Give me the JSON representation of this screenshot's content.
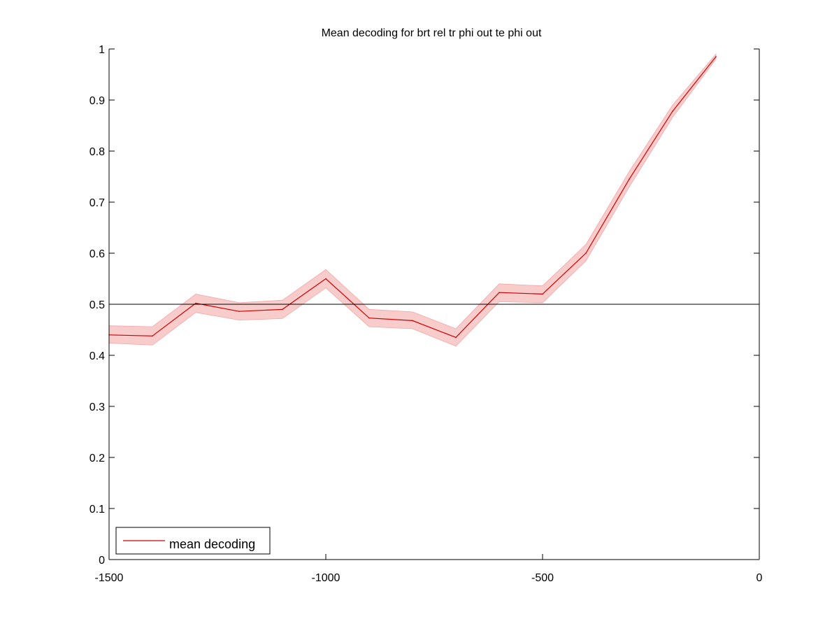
{
  "chart_data": {
    "type": "line",
    "title": "Mean decoding for brt rel tr phi out te phi out",
    "xlabel": "",
    "ylabel": "",
    "xlim": [
      -1500,
      0
    ],
    "ylim": [
      0,
      1
    ],
    "xticks": [
      -1500,
      -1000,
      -500,
      0
    ],
    "yticks": [
      0,
      0.1,
      0.2,
      0.3,
      0.4,
      0.5,
      0.6,
      0.7,
      0.8,
      0.9,
      1
    ],
    "reference_line": 0.5,
    "grid": false,
    "legend_position": "bottom-left",
    "series": [
      {
        "name": "mean decoding",
        "color": "#cc0000",
        "band_color": "#f9cccc",
        "x": [
          -1500,
          -1400,
          -1300,
          -1200,
          -1100,
          -1000,
          -900,
          -800,
          -700,
          -600,
          -500,
          -400,
          -300,
          -200,
          -100
        ],
        "values": [
          0.44,
          0.438,
          0.502,
          0.486,
          0.49,
          0.55,
          0.473,
          0.468,
          0.435,
          0.523,
          0.52,
          0.6,
          0.745,
          0.878,
          0.985
        ],
        "lower": [
          0.424,
          0.42,
          0.484,
          0.469,
          0.472,
          0.532,
          0.456,
          0.452,
          0.418,
          0.505,
          0.503,
          0.585,
          0.73,
          0.866,
          0.98
        ],
        "upper": [
          0.458,
          0.456,
          0.52,
          0.503,
          0.508,
          0.568,
          0.49,
          0.485,
          0.452,
          0.54,
          0.536,
          0.617,
          0.76,
          0.89,
          0.99
        ]
      }
    ]
  }
}
